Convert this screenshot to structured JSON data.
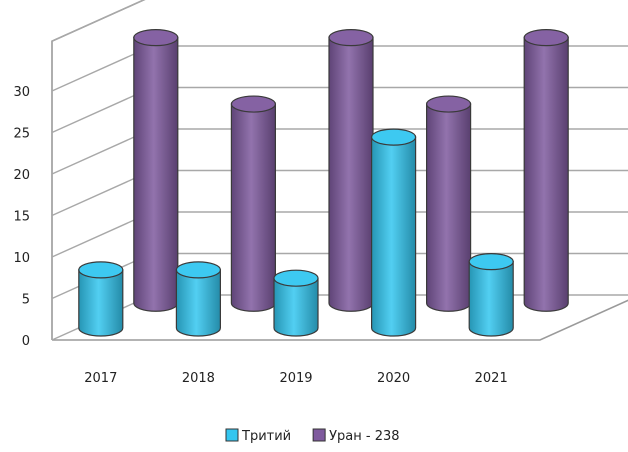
{
  "chart_data": {
    "type": "bar",
    "subtype": "3d-cylinder",
    "categories": [
      "2017",
      "2018",
      "2019",
      "2020",
      "2021"
    ],
    "series": [
      {
        "name": "Тритий",
        "color": "#33c6f0",
        "values": [
          7,
          7,
          6,
          23,
          8
        ]
      },
      {
        "name": "Уран - 238",
        "color": "#7f5a9e",
        "values": [
          32,
          24,
          32,
          24,
          32
        ]
      }
    ],
    "y_ticks": [
      "0",
      "5",
      "10",
      "15",
      "20",
      "25",
      "30"
    ],
    "ylim": [
      0,
      30
    ],
    "grid": true,
    "legend_position": "bottom"
  }
}
